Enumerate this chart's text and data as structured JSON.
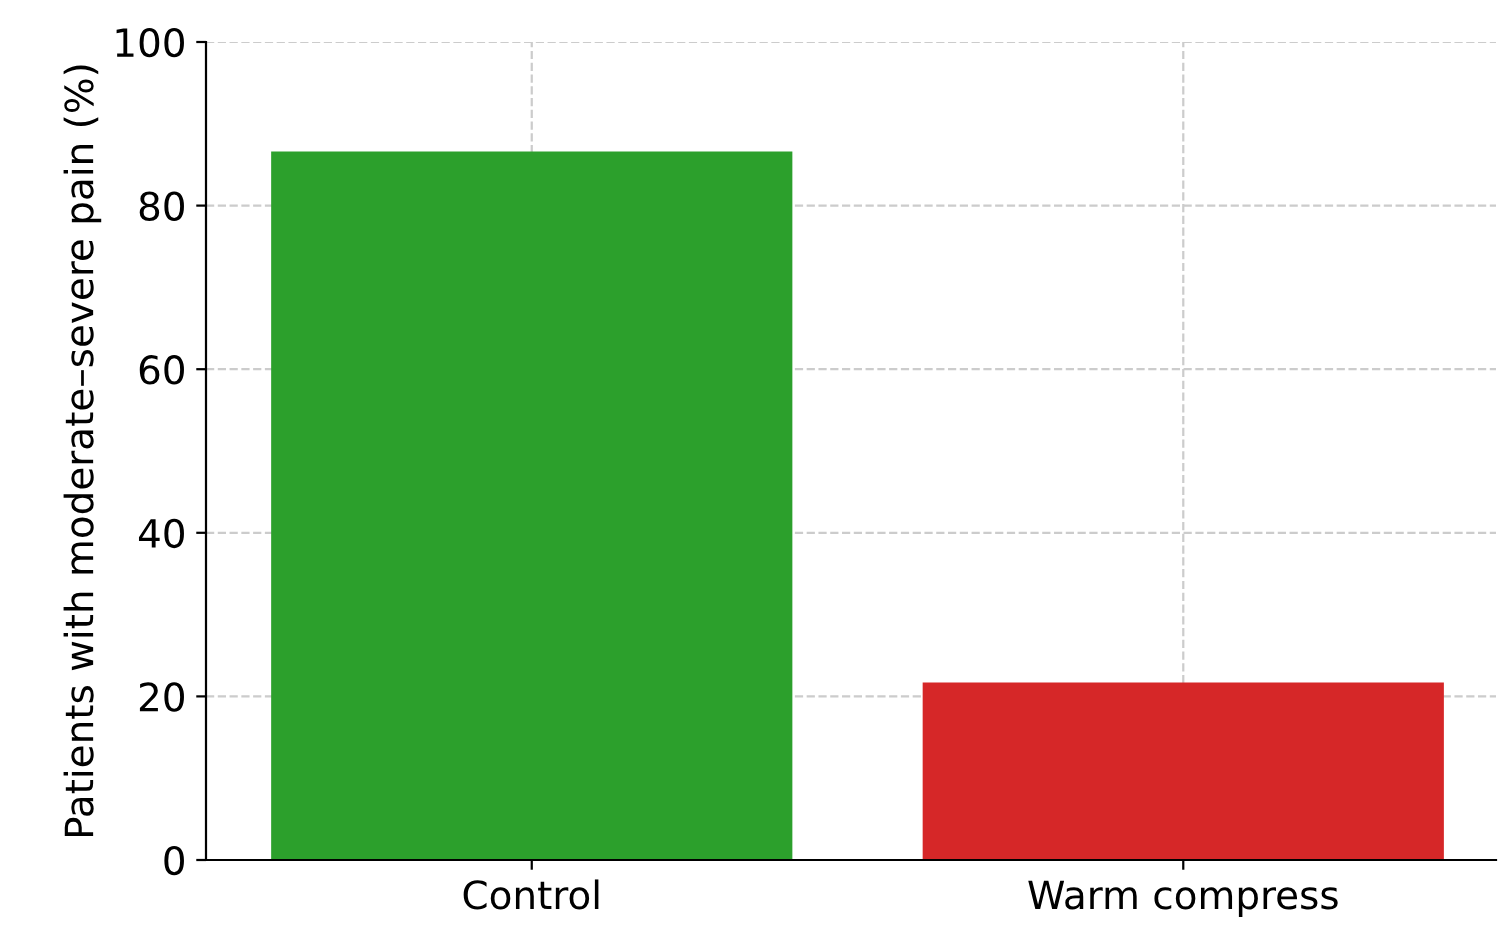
{
  "chart_data": {
    "type": "bar",
    "ylabel": "Patients with moderate–severe pain (%)",
    "categories": [
      "Control",
      "Warm compress"
    ],
    "values": [
      86.6,
      21.7
    ],
    "colors": [
      "#2ca02c",
      "#d62728"
    ],
    "ylim": [
      0,
      100
    ],
    "yticks": [
      0,
      20,
      40,
      60,
      80,
      100
    ],
    "grid": true
  }
}
